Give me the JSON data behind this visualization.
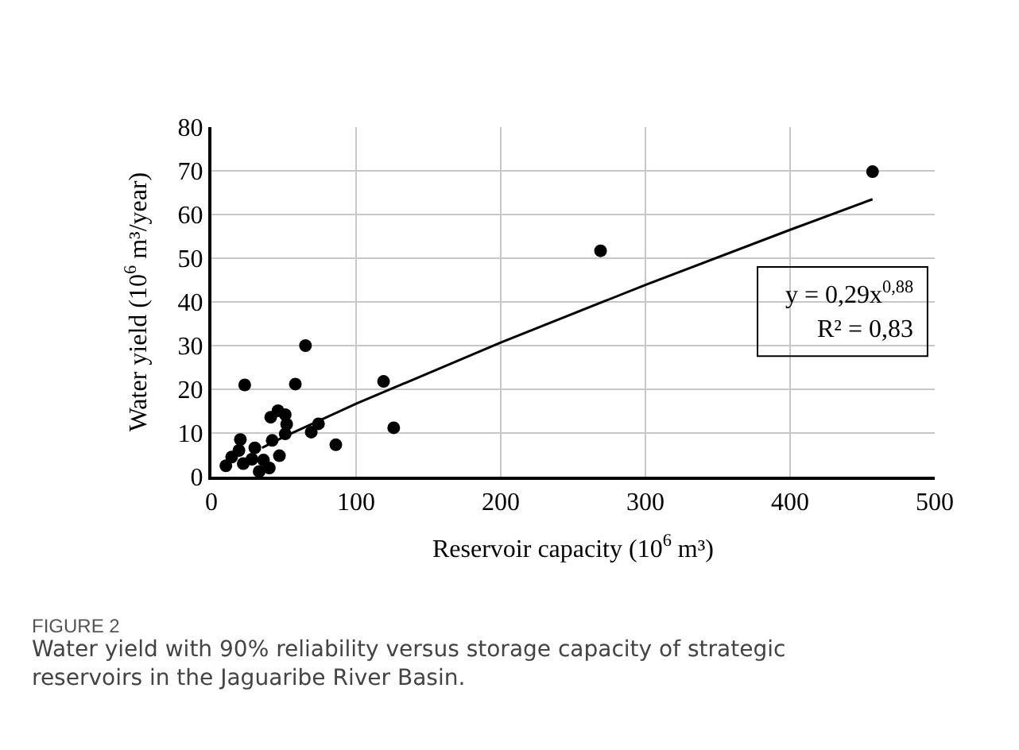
{
  "chart_data": {
    "type": "scatter",
    "xlabel": "Reservoir capacity (10$^{6}$ m³)",
    "ylabel": "Water yield (10$^{6}$ m³/year)",
    "xlim": [
      0,
      500
    ],
    "xticks": [
      0,
      100,
      200,
      300,
      400,
      500
    ],
    "ylim": [
      0,
      80
    ],
    "yticks": [
      0,
      10,
      20,
      30,
      40,
      50,
      60,
      70,
      80
    ],
    "grid": true,
    "marker": "circle",
    "series": [
      {
        "color": "#000000",
        "x": [
          457,
          269,
          65,
          23,
          58,
          119,
          126,
          86,
          69,
          74,
          51,
          46,
          41,
          52,
          51,
          42,
          47,
          20,
          30,
          10,
          14,
          19,
          22,
          28,
          33,
          36,
          40
        ],
        "values": [
          69.8,
          51.7,
          30,
          21,
          21.2,
          21.8,
          11.2,
          7.3,
          10.2,
          12.1,
          14.2,
          15.1,
          13.6,
          12,
          9.8,
          8.3,
          4.8,
          8.5,
          6.6,
          2.5,
          4.5,
          6,
          3,
          4,
          1.2,
          3.8,
          2
        ]
      },
      {
        "type": "line",
        "color": "#000000",
        "marker": "none",
        "x": [
          35,
          50,
          100,
          200,
          300,
          400,
          457
        ],
        "values": [
          6.6,
          9.1,
          16.7,
          30.7,
          43.9,
          56.5,
          63.5
        ]
      }
    ],
    "annotations": [
      "y = 0,29x$^{0,88}$",
      "R² = 0,83",
      "FIGURE 2",
      "Water yield with 90% reliability versus storage capacity of strategic reservoirs in the Jaguaribe River Basin."
    ]
  }
}
